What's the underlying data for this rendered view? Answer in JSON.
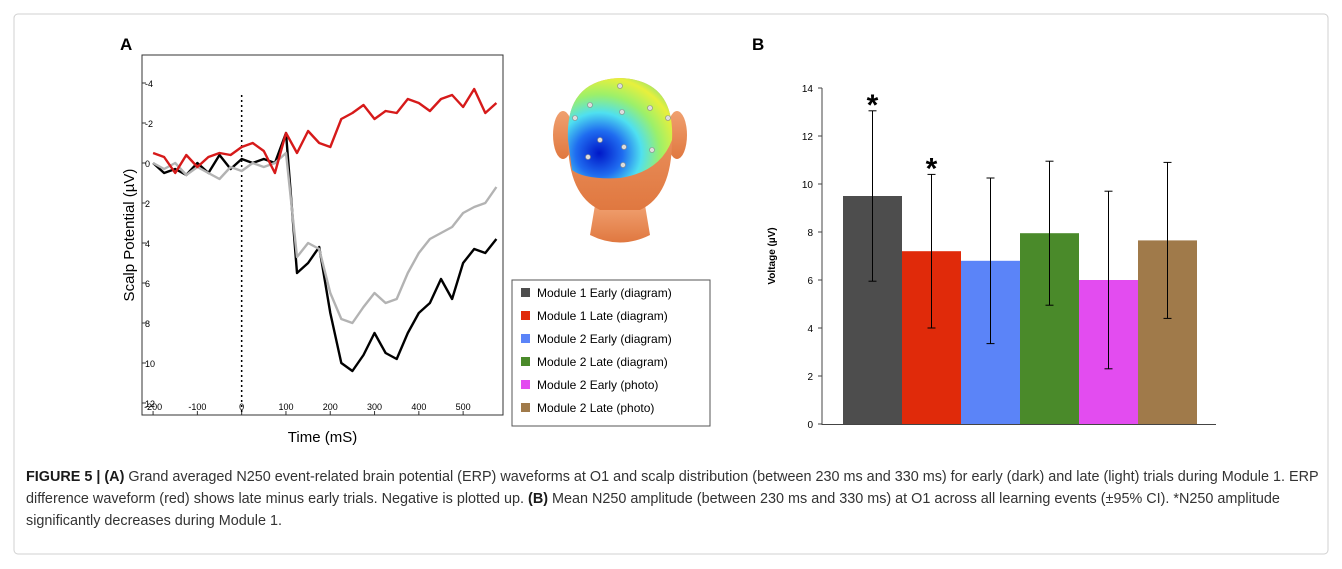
{
  "chart_data": [
    {
      "type": "line",
      "panel": "A",
      "y_label": "Scalp Potential (µV)",
      "x_label": "Time (mS)",
      "x": [
        -200,
        -175,
        -150,
        -125,
        -100,
        -75,
        -50,
        -25,
        0,
        25,
        50,
        75,
        100,
        125,
        150,
        175,
        200,
        225,
        250,
        275,
        300,
        325,
        350,
        375,
        400,
        425,
        450,
        475,
        500,
        525,
        550,
        575
      ],
      "series": [
        {
          "color": "#000000",
          "values": [
            0,
            0.5,
            0.3,
            0.6,
            0,
            0.5,
            -0.4,
            0.3,
            -0.2,
            0,
            -0.2,
            0,
            -1.5,
            5.5,
            5,
            4.2,
            7.5,
            10,
            10.4,
            9.6,
            8.5,
            9.5,
            9.8,
            8.5,
            7.5,
            7,
            5.8,
            6.8,
            5,
            4.3,
            4.5,
            3.8
          ]
        },
        {
          "color": "#b3b3b3",
          "values": [
            0,
            0.3,
            0,
            0.6,
            0.2,
            0.5,
            0.8,
            0.2,
            0.4,
            0,
            0.2,
            0,
            -0.5,
            4.7,
            4,
            4.3,
            6.5,
            7.8,
            8,
            7.2,
            6.5,
            7,
            6.8,
            5.5,
            4.5,
            3.8,
            3.5,
            3.2,
            2.5,
            2.2,
            2,
            1.2
          ]
        },
        {
          "color": "#d61a1a",
          "values": [
            -0.5,
            -0.3,
            0.5,
            -0.4,
            0.2,
            -0.3,
            -0.5,
            -0.4,
            -0.8,
            -1,
            -0.6,
            0.5,
            -1.5,
            -0.5,
            -1.6,
            -1,
            -0.8,
            -2.2,
            -2.5,
            -2.9,
            -2.2,
            -2.6,
            -2.5,
            -3.2,
            -3,
            -2.6,
            -3.2,
            -3.4,
            -2.8,
            -3.7,
            -2.5,
            -3
          ]
        }
      ],
      "xlim": [
        -225,
        590
      ],
      "xticks": [
        -200,
        -100,
        0,
        100,
        200,
        300,
        400,
        500
      ],
      "ylim": [
        -5.4,
        12.6
      ],
      "yticks": [
        -4,
        -2,
        0,
        2,
        4,
        6,
        8,
        10,
        12
      ],
      "y_inverted": true,
      "vline": 0
    },
    {
      "type": "bar",
      "panel": "B",
      "y_label": "Voltage (µV)",
      "legend": "left",
      "series": [
        {
          "name": "Module 1 Early (diagram)",
          "color": "#4d4d4d",
          "values": [
            9.5
          ],
          "errors": [
            3.55
          ],
          "marker": "*"
        },
        {
          "name": "Module 1 Late (diagram)",
          "color": "#e02a0a",
          "values": [
            7.2
          ],
          "errors": [
            3.2
          ],
          "marker": "*"
        },
        {
          "name": "Module 2 Early (diagram)",
          "color": "#5b84f8",
          "values": [
            6.8
          ],
          "errors": [
            3.45
          ]
        },
        {
          "name": "Module 2 Late (diagram)",
          "color": "#4a8a2a",
          "values": [
            7.95
          ],
          "errors": [
            3.0
          ]
        },
        {
          "name": "Module 2 Early (photo)",
          "color": "#e34cf0",
          "values": [
            6.0
          ],
          "errors": [
            3.7
          ]
        },
        {
          "name": "Module 2 Late (photo)",
          "color": "#a07a4a",
          "values": [
            7.65
          ],
          "errors": [
            3.25
          ]
        }
      ],
      "ylim": [
        0,
        14
      ],
      "yticks": [
        0,
        2,
        4,
        6,
        8,
        10,
        12,
        14
      ]
    }
  ],
  "caption": {
    "runs": [
      {
        "text": "FIGURE 5 | ",
        "bold": true
      },
      {
        "text": "(A)",
        "bold": true
      },
      {
        "text": " Grand averaged N250 event-related brain potential (ERP) waveforms at O1 and scalp distribution (between 230 ms and 330 ms) for early (dark) and late (light) trials during Module 1. ERP difference waveform (red) shows late minus early trials. Negative is plotted up. ",
        "bold": false
      },
      {
        "text": "(B)",
        "bold": true
      },
      {
        "text": " Mean N250 amplitude (between 230 ms and 330 ms) at O1 across all learning events (±95% CI). *N250 amplitude significantly decreases during Module 1.",
        "bold": false
      }
    ]
  }
}
